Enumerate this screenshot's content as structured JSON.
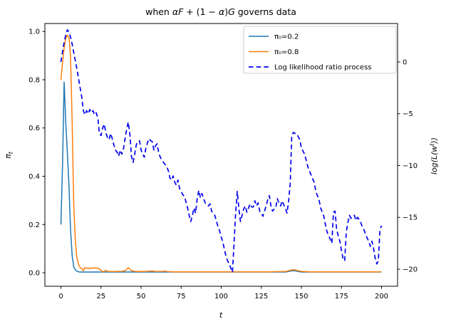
{
  "figure": {
    "background": "#ffffff"
  },
  "chart_data": {
    "type": "line",
    "title_plain": "when αF + (1 − α)G governs data",
    "title_parts": [
      {
        "text": "when ",
        "italic": false
      },
      {
        "text": "αF",
        "italic": true
      },
      {
        "text": " + (1 − ",
        "italic": false
      },
      {
        "text": "α",
        "italic": true
      },
      {
        "text": ")",
        "italic": false
      },
      {
        "text": "G",
        "italic": true
      },
      {
        "text": " governs data",
        "italic": false
      }
    ],
    "xlabel": "t",
    "ylabel_left": {
      "base": "π",
      "sub": "t"
    },
    "ylabel_right": {
      "pre": "log(L(w",
      "sup": "t",
      "post": "))"
    },
    "x_ticks": [
      0,
      25,
      50,
      75,
      100,
      125,
      150,
      175,
      200
    ],
    "yleft_ticks": [
      0.0,
      0.2,
      0.4,
      0.6,
      0.8,
      1.0
    ],
    "yright_ticks": [
      0,
      -5,
      -10,
      -15,
      -20
    ],
    "xlim": [
      -10,
      210
    ],
    "ylim_left": [
      -0.056,
      1.033
    ],
    "ylim_right": [
      -21.65,
      3.71
    ],
    "grid": false,
    "legend_position": "upper right",
    "series": [
      {
        "name": "π₀=0.2",
        "color": "#1f77b4",
        "style": "solid",
        "axis": "left",
        "width": 1.5,
        "points": [
          [
            0,
            0.2
          ],
          [
            1,
            0.45
          ],
          [
            2,
            0.79
          ],
          [
            3,
            0.62
          ],
          [
            4,
            0.5
          ],
          [
            5,
            0.36
          ],
          [
            6,
            0.18
          ],
          [
            7,
            0.07
          ],
          [
            8,
            0.025
          ],
          [
            9,
            0.012
          ],
          [
            10,
            0.006
          ],
          [
            11,
            0.004
          ],
          [
            12,
            0.003
          ],
          [
            20,
            0.003
          ],
          [
            40,
            0.003
          ],
          [
            60,
            0.003
          ],
          [
            80,
            0.003
          ],
          [
            100,
            0.003
          ],
          [
            120,
            0.003
          ],
          [
            140,
            0.003
          ],
          [
            142,
            0.005
          ],
          [
            144,
            0.008
          ],
          [
            146,
            0.008
          ],
          [
            148,
            0.005
          ],
          [
            150,
            0.003
          ],
          [
            160,
            0.003
          ],
          [
            180,
            0.003
          ],
          [
            200,
            0.003
          ]
        ]
      },
      {
        "name": "π₀=0.8",
        "color": "#ff7f0e",
        "style": "solid",
        "axis": "left",
        "width": 1.5,
        "points": [
          [
            0,
            0.8
          ],
          [
            1,
            0.87
          ],
          [
            2,
            0.93
          ],
          [
            3,
            0.97
          ],
          [
            4,
            0.985
          ],
          [
            5,
            0.975
          ],
          [
            6,
            0.9
          ],
          [
            7,
            0.62
          ],
          [
            8,
            0.28
          ],
          [
            9,
            0.13
          ],
          [
            10,
            0.06
          ],
          [
            11,
            0.035
          ],
          [
            12,
            0.021
          ],
          [
            13,
            0.018
          ],
          [
            14,
            0.008
          ],
          [
            15,
            0.022
          ],
          [
            16,
            0.018
          ],
          [
            17,
            0.02
          ],
          [
            18,
            0.016
          ],
          [
            19,
            0.02
          ],
          [
            20,
            0.018
          ],
          [
            21,
            0.022
          ],
          [
            22,
            0.018
          ],
          [
            23,
            0.02
          ],
          [
            24,
            0.015
          ],
          [
            25,
            0.01
          ],
          [
            26,
            0.004
          ],
          [
            27,
            0.006
          ],
          [
            28,
            0.01
          ],
          [
            29,
            0.006
          ],
          [
            30,
            0.005
          ],
          [
            34,
            0.005
          ],
          [
            38,
            0.006
          ],
          [
            40,
            0.008
          ],
          [
            41,
            0.014
          ],
          [
            42,
            0.021
          ],
          [
            43,
            0.015
          ],
          [
            44,
            0.008
          ],
          [
            46,
            0.006
          ],
          [
            48,
            0.005
          ],
          [
            52,
            0.005
          ],
          [
            56,
            0.007
          ],
          [
            57,
            0.008
          ],
          [
            58,
            0.006
          ],
          [
            60,
            0.005
          ],
          [
            64,
            0.006
          ],
          [
            65,
            0.007
          ],
          [
            66,
            0.005
          ],
          [
            70,
            0.004
          ],
          [
            80,
            0.004
          ],
          [
            100,
            0.004
          ],
          [
            120,
            0.004
          ],
          [
            130,
            0.004
          ],
          [
            140,
            0.005
          ],
          [
            142,
            0.008
          ],
          [
            144,
            0.012
          ],
          [
            146,
            0.012
          ],
          [
            148,
            0.008
          ],
          [
            150,
            0.006
          ],
          [
            155,
            0.004
          ],
          [
            170,
            0.004
          ],
          [
            190,
            0.004
          ],
          [
            200,
            0.004
          ]
        ]
      },
      {
        "name": "Log likelihood ratio process",
        "color": "#0000ee",
        "style": "dashed",
        "axis": "right",
        "width": 1.7,
        "points": [
          [
            0,
            0.0
          ],
          [
            1,
            1.0
          ],
          [
            2,
            1.9
          ],
          [
            3,
            2.6
          ],
          [
            4,
            3.1
          ],
          [
            5,
            2.9
          ],
          [
            6,
            2.4
          ],
          [
            7,
            1.7
          ],
          [
            8,
            0.9
          ],
          [
            9,
            0.1
          ],
          [
            10,
            -0.7
          ],
          [
            11,
            -1.6
          ],
          [
            12,
            -2.5
          ],
          [
            13,
            -3.4
          ],
          [
            14,
            -4.7
          ],
          [
            15,
            -5.1
          ],
          [
            16,
            -4.7
          ],
          [
            17,
            -5.0
          ],
          [
            18,
            -4.6
          ],
          [
            19,
            -4.9
          ],
          [
            20,
            -4.7
          ],
          [
            21,
            -5.1
          ],
          [
            22,
            -4.9
          ],
          [
            23,
            -5.4
          ],
          [
            24,
            -6.9
          ],
          [
            25,
            -7.1
          ],
          [
            26,
            -6.4
          ],
          [
            27,
            -6.0
          ],
          [
            28,
            -6.8
          ],
          [
            29,
            -7.3
          ],
          [
            30,
            -7.5
          ],
          [
            31,
            -6.9
          ],
          [
            32,
            -7.4
          ],
          [
            33,
            -8.0
          ],
          [
            34,
            -8.5
          ],
          [
            35,
            -8.7
          ],
          [
            36,
            -9.1
          ],
          [
            37,
            -8.5
          ],
          [
            38,
            -8.9
          ],
          [
            39,
            -8.4
          ],
          [
            40,
            -7.4
          ],
          [
            41,
            -6.5
          ],
          [
            42,
            -5.8
          ],
          [
            43,
            -7.0
          ],
          [
            44,
            -9.1
          ],
          [
            45,
            -9.7
          ],
          [
            46,
            -8.9
          ],
          [
            47,
            -8.0
          ],
          [
            48,
            -7.7
          ],
          [
            49,
            -7.6
          ],
          [
            50,
            -8.5
          ],
          [
            51,
            -8.9
          ],
          [
            52,
            -9.2
          ],
          [
            53,
            -8.3
          ],
          [
            54,
            -7.8
          ],
          [
            55,
            -7.4
          ],
          [
            56,
            -7.6
          ],
          [
            57,
            -7.7
          ],
          [
            58,
            -8.5
          ],
          [
            59,
            -8.1
          ],
          [
            60,
            -7.9
          ],
          [
            61,
            -8.8
          ],
          [
            62,
            -9.2
          ],
          [
            63,
            -9.5
          ],
          [
            64,
            -9.7
          ],
          [
            65,
            -9.9
          ],
          [
            66,
            -10.1
          ],
          [
            67,
            -10.5
          ],
          [
            68,
            -11.2
          ],
          [
            69,
            -11.4
          ],
          [
            70,
            -11.0
          ],
          [
            71,
            -11.6
          ],
          [
            72,
            -11.9
          ],
          [
            73,
            -11.4
          ],
          [
            74,
            -12.2
          ],
          [
            75,
            -12.5
          ],
          [
            76,
            -12.8
          ],
          [
            77,
            -13.0
          ],
          [
            78,
            -13.5
          ],
          [
            79,
            -14.1
          ],
          [
            80,
            -14.8
          ],
          [
            81,
            -15.4
          ],
          [
            82,
            -14.8
          ],
          [
            83,
            -14.1
          ],
          [
            84,
            -14.6
          ],
          [
            85,
            -13.2
          ],
          [
            86,
            -12.4
          ],
          [
            87,
            -13.1
          ],
          [
            88,
            -12.7
          ],
          [
            89,
            -13.2
          ],
          [
            90,
            -13.6
          ],
          [
            91,
            -13.8
          ],
          [
            92,
            -13.9
          ],
          [
            93,
            -13.7
          ],
          [
            94,
            -14.4
          ],
          [
            95,
            -14.6
          ],
          [
            96,
            -14.8
          ],
          [
            97,
            -15.4
          ],
          [
            98,
            -15.9
          ],
          [
            99,
            -16.3
          ],
          [
            100,
            -16.9
          ],
          [
            101,
            -17.4
          ],
          [
            102,
            -18.1
          ],
          [
            103,
            -18.8
          ],
          [
            104,
            -19.2
          ],
          [
            105,
            -19.5
          ],
          [
            106,
            -19.9
          ],
          [
            107,
            -20.3
          ],
          [
            108,
            -17.5
          ],
          [
            109,
            -14.5
          ],
          [
            110,
            -12.5
          ],
          [
            111,
            -14.2
          ],
          [
            112,
            -15.4
          ],
          [
            113,
            -14.8
          ],
          [
            114,
            -14.2
          ],
          [
            115,
            -13.9
          ],
          [
            116,
            -14.5
          ],
          [
            117,
            -14.1
          ],
          [
            118,
            -13.7
          ],
          [
            119,
            -14.0
          ],
          [
            120,
            -14.0
          ],
          [
            121,
            -13.4
          ],
          [
            122,
            -13.9
          ],
          [
            123,
            -13.6
          ],
          [
            124,
            -14.4
          ],
          [
            125,
            -14.6
          ],
          [
            126,
            -14.9
          ],
          [
            127,
            -14.4
          ],
          [
            128,
            -13.9
          ],
          [
            129,
            -13.3
          ],
          [
            130,
            -12.9
          ],
          [
            131,
            -13.9
          ],
          [
            132,
            -14.4
          ],
          [
            133,
            -14.2
          ],
          [
            134,
            -14.1
          ],
          [
            135,
            -13.2
          ],
          [
            136,
            -13.6
          ],
          [
            137,
            -13.9
          ],
          [
            138,
            -13.4
          ],
          [
            139,
            -13.8
          ],
          [
            140,
            -14.1
          ],
          [
            141,
            -14.6
          ],
          [
            142,
            -13.5
          ],
          [
            143,
            -11.8
          ],
          [
            144,
            -7.1
          ],
          [
            145,
            -6.8
          ],
          [
            146,
            -6.9
          ],
          [
            147,
            -6.9
          ],
          [
            148,
            -7.2
          ],
          [
            149,
            -7.5
          ],
          [
            150,
            -8.3
          ],
          [
            151,
            -8.6
          ],
          [
            152,
            -8.9
          ],
          [
            153,
            -9.5
          ],
          [
            154,
            -10.1
          ],
          [
            155,
            -10.5
          ],
          [
            156,
            -10.9
          ],
          [
            157,
            -11.3
          ],
          [
            158,
            -11.6
          ],
          [
            159,
            -12.5
          ],
          [
            160,
            -12.9
          ],
          [
            161,
            -13.3
          ],
          [
            162,
            -14.1
          ],
          [
            163,
            -14.5
          ],
          [
            164,
            -14.9
          ],
          [
            165,
            -15.7
          ],
          [
            166,
            -16.4
          ],
          [
            167,
            -16.8
          ],
          [
            168,
            -17.1
          ],
          [
            169,
            -17.5
          ],
          [
            170,
            -14.5
          ],
          [
            171,
            -14.4
          ],
          [
            172,
            -16.2
          ],
          [
            173,
            -16.8
          ],
          [
            174,
            -17.3
          ],
          [
            175,
            -18.2
          ],
          [
            176,
            -19.0
          ],
          [
            177,
            -19.2
          ],
          [
            178,
            -16.4
          ],
          [
            179,
            -15.5
          ],
          [
            180,
            -14.8
          ],
          [
            181,
            -15.1
          ],
          [
            182,
            -14.9
          ],
          [
            183,
            -14.8
          ],
          [
            184,
            -15.3
          ],
          [
            185,
            -15.0
          ],
          [
            186,
            -15.2
          ],
          [
            187,
            -15.5
          ],
          [
            188,
            -15.9
          ],
          [
            189,
            -16.2
          ],
          [
            190,
            -16.6
          ],
          [
            191,
            -17.0
          ],
          [
            192,
            -17.3
          ],
          [
            193,
            -17.8
          ],
          [
            194,
            -17.3
          ],
          [
            195,
            -18.0
          ],
          [
            196,
            -18.9
          ],
          [
            197,
            -19.5
          ],
          [
            198,
            -19.2
          ],
          [
            199,
            -16.2
          ],
          [
            200,
            -15.8
          ]
        ]
      }
    ]
  }
}
